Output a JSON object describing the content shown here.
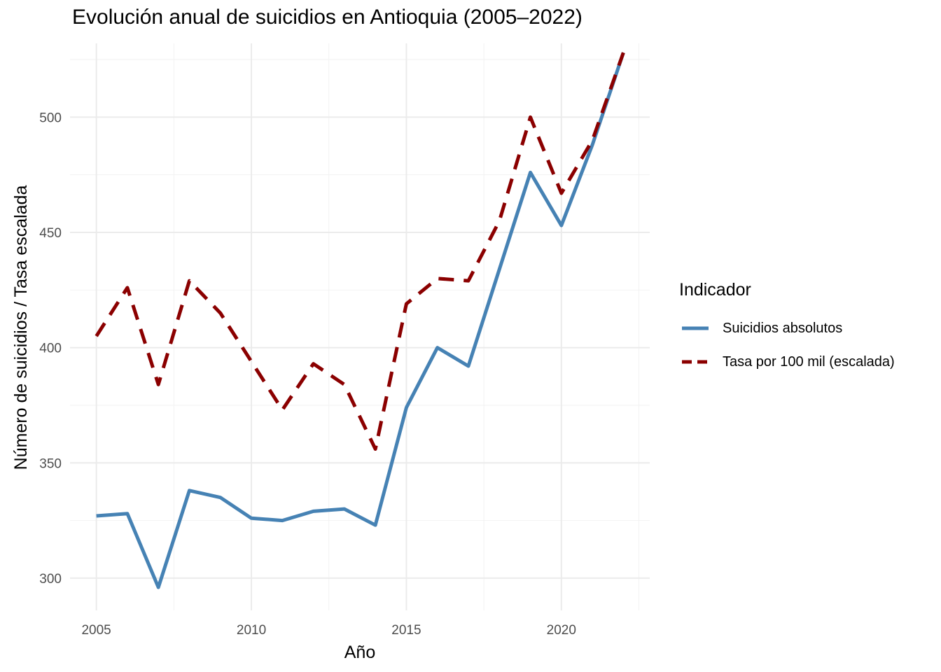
{
  "chart_data": {
    "type": "line",
    "title": "Evolución anual de suicidios en Antioquia (2005–2022)",
    "xlabel": "Año",
    "ylabel": "Número de suicidios / Tasa escalada",
    "xlim": [
      2004.15,
      2022.85
    ],
    "ylim": [
      286,
      532
    ],
    "x_ticks": [
      2005,
      2010,
      2015,
      2020
    ],
    "y_ticks": [
      300,
      350,
      400,
      450,
      500
    ],
    "grid": true,
    "legend": {
      "title": "Indicador",
      "position": "right"
    },
    "x": [
      2005,
      2006,
      2007,
      2008,
      2009,
      2010,
      2011,
      2012,
      2013,
      2014,
      2015,
      2016,
      2017,
      2018,
      2019,
      2020,
      2021,
      2022
    ],
    "series": [
      {
        "name": "Suicidios absolutos",
        "color": "#4682B4",
        "dash": "solid",
        "values": [
          327,
          328,
          296,
          338,
          335,
          326,
          325,
          329,
          330,
          323,
          374,
          400,
          392,
          434,
          476,
          453,
          488,
          528
        ]
      },
      {
        "name": "Tasa por 100 mil (escalada)",
        "color": "#8B0000",
        "dash": "dashed",
        "values": [
          405,
          426,
          384,
          429,
          415,
          394,
          373,
          393,
          384,
          356,
          419,
          430,
          429,
          455,
          500,
          467,
          490,
          528
        ]
      }
    ]
  }
}
